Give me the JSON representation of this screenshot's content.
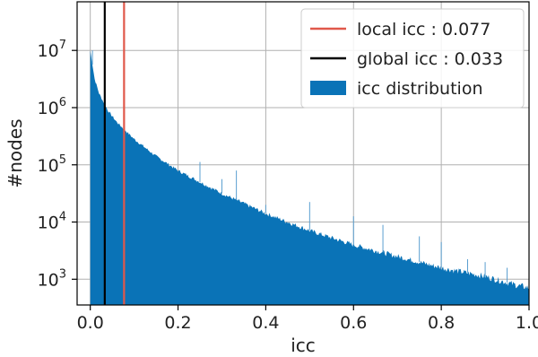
{
  "chart_data": {
    "type": "histogram",
    "xlabel": "icc",
    "ylabel": "#nodes",
    "xlim": [
      -0.03,
      1.0
    ],
    "ylim_log10": [
      2.55,
      7.85
    ],
    "y_scale": "log",
    "grid": true,
    "x_ticks": [
      {
        "value": 0.0,
        "label": "0.0"
      },
      {
        "value": 0.2,
        "label": "0.2"
      },
      {
        "value": 0.4,
        "label": "0.4"
      },
      {
        "value": 0.6,
        "label": "0.6"
      },
      {
        "value": 0.8,
        "label": "0.8"
      },
      {
        "value": 1.0,
        "label": "1.0"
      }
    ],
    "y_ticks": [
      {
        "log10": 3,
        "base": "10",
        "exp": "3"
      },
      {
        "log10": 4,
        "base": "10",
        "exp": "4"
      },
      {
        "log10": 5,
        "base": "10",
        "exp": "5"
      },
      {
        "log10": 6,
        "base": "10",
        "exp": "6"
      },
      {
        "log10": 7,
        "base": "10",
        "exp": "7"
      }
    ],
    "distribution_log10": [
      {
        "x": 0.0,
        "y": 7.0
      },
      {
        "x": 0.01,
        "y": 6.5
      },
      {
        "x": 0.02,
        "y": 6.25
      },
      {
        "x": 0.04,
        "y": 5.95
      },
      {
        "x": 0.06,
        "y": 5.75
      },
      {
        "x": 0.08,
        "y": 5.6
      },
      {
        "x": 0.1,
        "y": 5.45
      },
      {
        "x": 0.15,
        "y": 5.15
      },
      {
        "x": 0.2,
        "y": 4.9
      },
      {
        "x": 0.3,
        "y": 4.5
      },
      {
        "x": 0.4,
        "y": 4.15
      },
      {
        "x": 0.5,
        "y": 3.85
      },
      {
        "x": 0.6,
        "y": 3.6
      },
      {
        "x": 0.7,
        "y": 3.4
      },
      {
        "x": 0.8,
        "y": 3.2
      },
      {
        "x": 0.9,
        "y": 3.05
      },
      {
        "x": 0.97,
        "y": 2.9
      },
      {
        "x": 1.0,
        "y": 2.85
      }
    ],
    "spikes_log10": [
      {
        "x": 0.005,
        "y": 7.0
      },
      {
        "x": 0.25,
        "y": 5.05
      },
      {
        "x": 0.3,
        "y": 4.75
      },
      {
        "x": 0.333,
        "y": 4.9
      },
      {
        "x": 0.4,
        "y": 4.3
      },
      {
        "x": 0.5,
        "y": 4.35
      },
      {
        "x": 0.6,
        "y": 4.1
      },
      {
        "x": 0.667,
        "y": 3.95
      },
      {
        "x": 0.75,
        "y": 3.75
      },
      {
        "x": 0.8,
        "y": 3.65
      },
      {
        "x": 0.86,
        "y": 3.35
      },
      {
        "x": 0.9,
        "y": 3.3
      },
      {
        "x": 0.95,
        "y": 3.2
      }
    ],
    "vlines": [
      {
        "name": "local icc : 0.077",
        "x": 0.077,
        "color": "#e0584a"
      },
      {
        "name": "global icc : 0.033",
        "x": 0.033,
        "color": "#000000"
      }
    ],
    "legend": {
      "position": "top-right",
      "entries": [
        {
          "label": "local icc : 0.077",
          "kind": "line",
          "color": "#e0584a"
        },
        {
          "label": "global icc : 0.033",
          "kind": "line",
          "color": "#000000"
        },
        {
          "label": "icc distribution",
          "kind": "patch",
          "color": "#0a73b7"
        }
      ]
    },
    "colors": {
      "fill": "#0a73b7",
      "grid": "#b0b0b0",
      "axis": "#000000"
    }
  }
}
